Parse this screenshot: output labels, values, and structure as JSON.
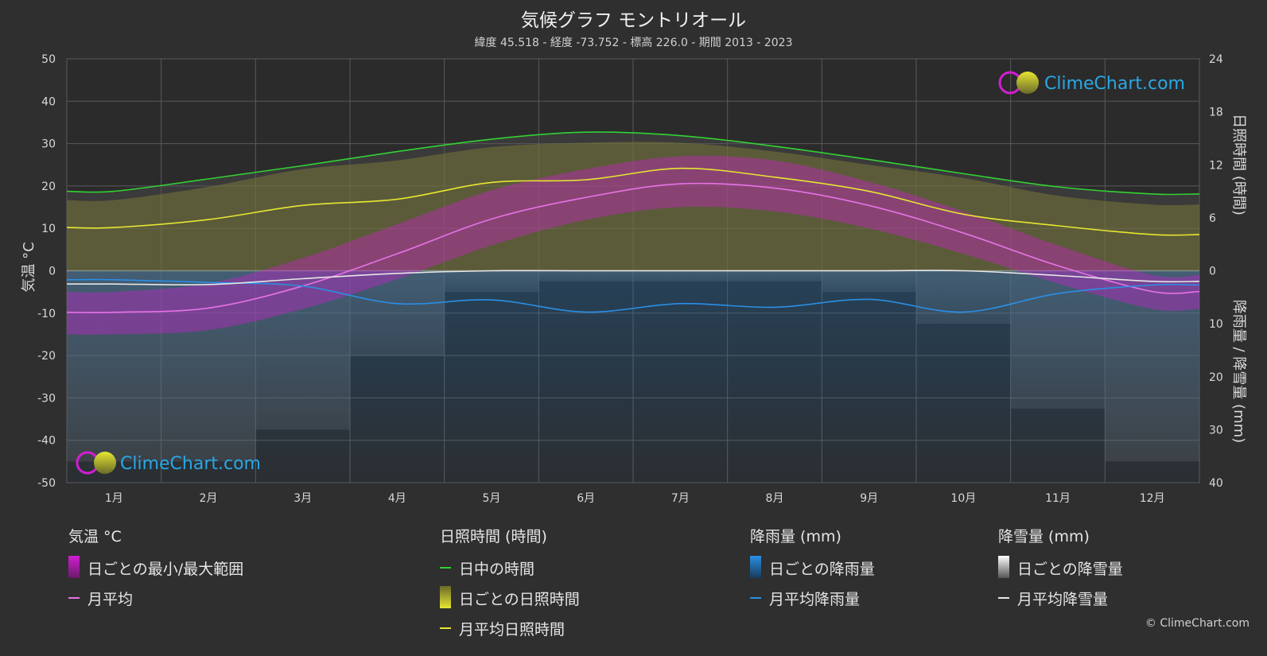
{
  "title": "気候グラフ モントリオール",
  "subtitle": "緯度 45.518 - 経度 -73.752 - 標高 226.0 - 期間 2013 - 2023",
  "logo_text": "ClimeChart.com",
  "copyright": "© ClimeChart.com",
  "chart_data": {
    "type": "line",
    "x": [
      "1月",
      "2月",
      "3月",
      "4月",
      "5月",
      "6月",
      "7月",
      "8月",
      "9月",
      "10月",
      "11月",
      "12月"
    ],
    "left_axis": {
      "label": "気温 °C",
      "range": [
        -50,
        50
      ],
      "ticks": [
        "50",
        "40",
        "30",
        "20",
        "10",
        "0",
        "-10",
        "-20",
        "-30",
        "-40",
        "-50"
      ]
    },
    "right_axis_top": {
      "label": "日照時間 (時間)",
      "range": [
        0,
        24
      ],
      "ticks": [
        "24",
        "18",
        "12",
        "6",
        "0"
      ]
    },
    "right_axis_bottom": {
      "label": "降雨量 / 降雪量 (mm)",
      "range": [
        0,
        40
      ],
      "ticks": [
        "0",
        "10",
        "20",
        "30",
        "40"
      ]
    },
    "grid": true,
    "series": [
      {
        "name": "日中の時間",
        "axis": "sunshine",
        "color": "#32d232",
        "values": [
          9.0,
          10.4,
          11.9,
          13.5,
          14.9,
          15.7,
          15.3,
          14.1,
          12.6,
          11.0,
          9.5,
          8.7
        ]
      },
      {
        "name": "月平均日照時間",
        "axis": "sunshine",
        "color": "#e6e632",
        "values": [
          4.9,
          5.8,
          7.4,
          8.1,
          10.0,
          10.3,
          11.6,
          10.6,
          9.0,
          6.4,
          5.1,
          4.1
        ]
      },
      {
        "name": "月平均",
        "axis": "temperature",
        "color": "#e673e6",
        "values": [
          -9.8,
          -8.8,
          -3.6,
          4.0,
          12.2,
          17.3,
          20.5,
          19.5,
          15.4,
          8.9,
          1.2,
          -4.9
        ]
      },
      {
        "name": "月平均降雨量",
        "axis": "precipitation",
        "color": "#2a8fe6",
        "values": [
          1.7,
          2.2,
          2.9,
          6.2,
          5.5,
          7.8,
          6.2,
          6.9,
          5.4,
          7.8,
          4.3,
          2.7
        ]
      },
      {
        "name": "月平均降雪量",
        "axis": "precipitation",
        "color": "#e6e6e6",
        "values": [
          2.5,
          2.6,
          1.5,
          0.5,
          0.0,
          0.0,
          0.0,
          0.0,
          0.0,
          0.0,
          0.9,
          2.0
        ]
      }
    ],
    "daily_temp_range": {
      "max": [
        -5,
        -3,
        3,
        11,
        19,
        24,
        27,
        26,
        21,
        14,
        6,
        -1
      ],
      "min": [
        -15,
        -14,
        -9,
        -2,
        6,
        12,
        15,
        14,
        10,
        4,
        -3,
        -9
      ]
    },
    "daily_sunshine_range": [
      8.0,
      9.5,
      11.5,
      12.5,
      14.0,
      14.5,
      14.5,
      13.5,
      12.0,
      10.5,
      8.5,
      7.5
    ]
  },
  "legend": {
    "temperature": {
      "title": "気温 °C",
      "items": [
        "日ごとの最小/最大範囲",
        "月平均"
      ]
    },
    "sunshine": {
      "title": "日照時間 (時間)",
      "items": [
        "日中の時間",
        "日ごとの日照時間",
        "月平均日照時間"
      ]
    },
    "rain": {
      "title": "降雨量 (mm)",
      "items": [
        "日ごとの降雨量",
        "月平均降雨量"
      ]
    },
    "snow": {
      "title": "降雪量 (mm)",
      "items": [
        "日ごとの降雪量",
        "月平均降雪量"
      ]
    }
  },
  "colors": {
    "background": "#2f2f2f",
    "grid": "#5a5a5a",
    "daylight": "#32d232",
    "sunshine": "#e6e632",
    "temperature": "#e673e6",
    "temp_range": "#d21ed2",
    "rain": "#2a8fe6",
    "snow": "#e6e6e6"
  }
}
